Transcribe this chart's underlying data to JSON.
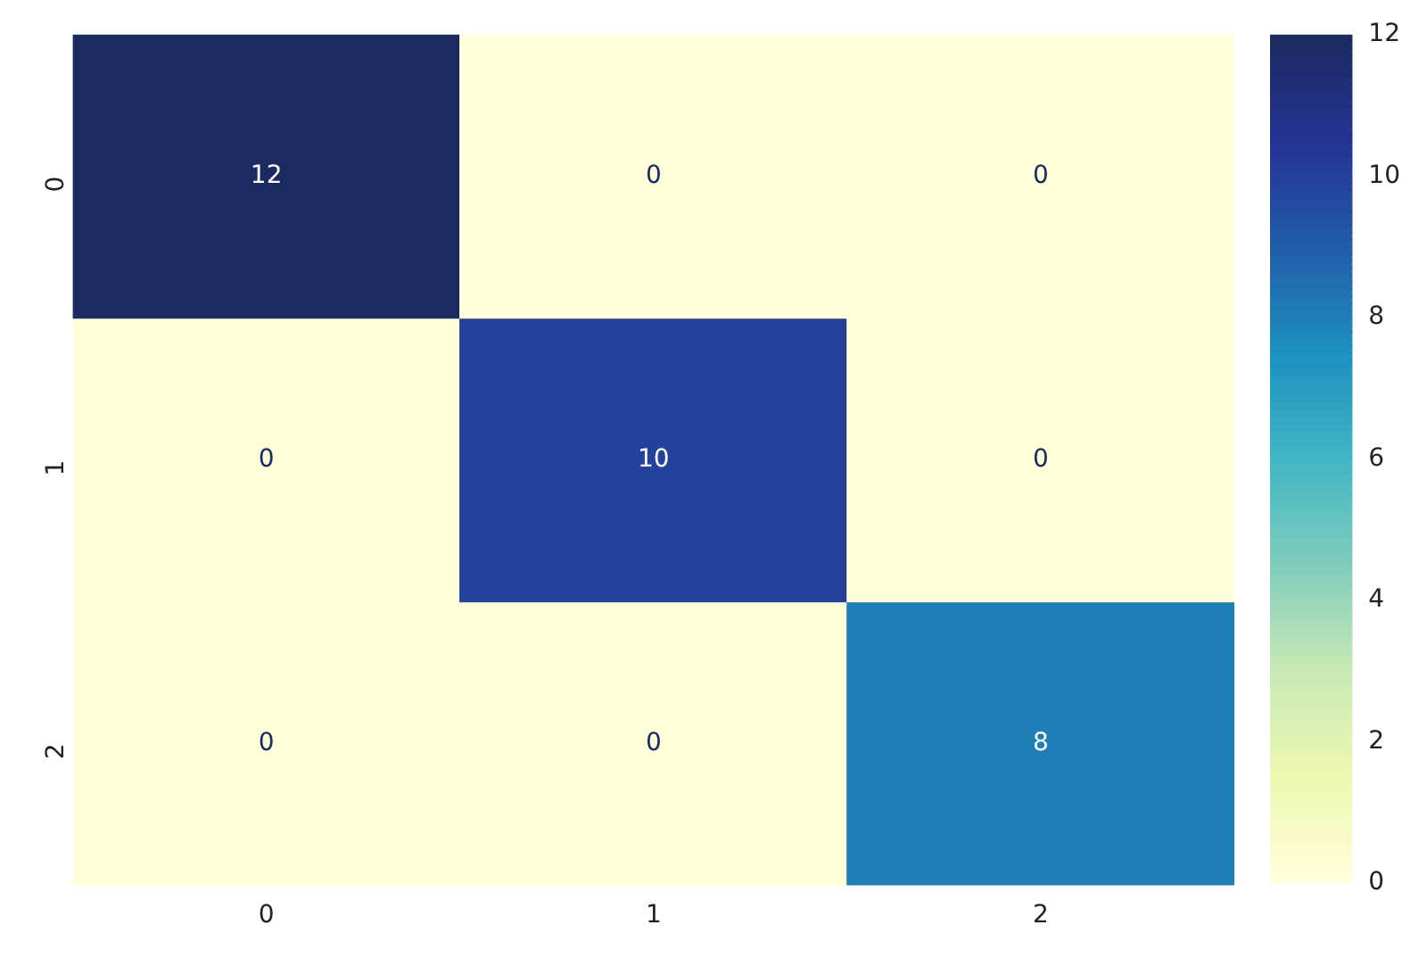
{
  "chart_data": {
    "type": "heatmap",
    "categories": [
      "0",
      "1",
      "2"
    ],
    "y_categories": [
      "0",
      "1",
      "2"
    ],
    "cells": [
      [
        12,
        0,
        0
      ],
      [
        0,
        10,
        0
      ],
      [
        0,
        0,
        8
      ]
    ],
    "data_labels": true,
    "clim": [
      0,
      12
    ],
    "cticks": [
      0,
      2,
      4,
      6,
      8,
      10,
      12
    ]
  }
}
